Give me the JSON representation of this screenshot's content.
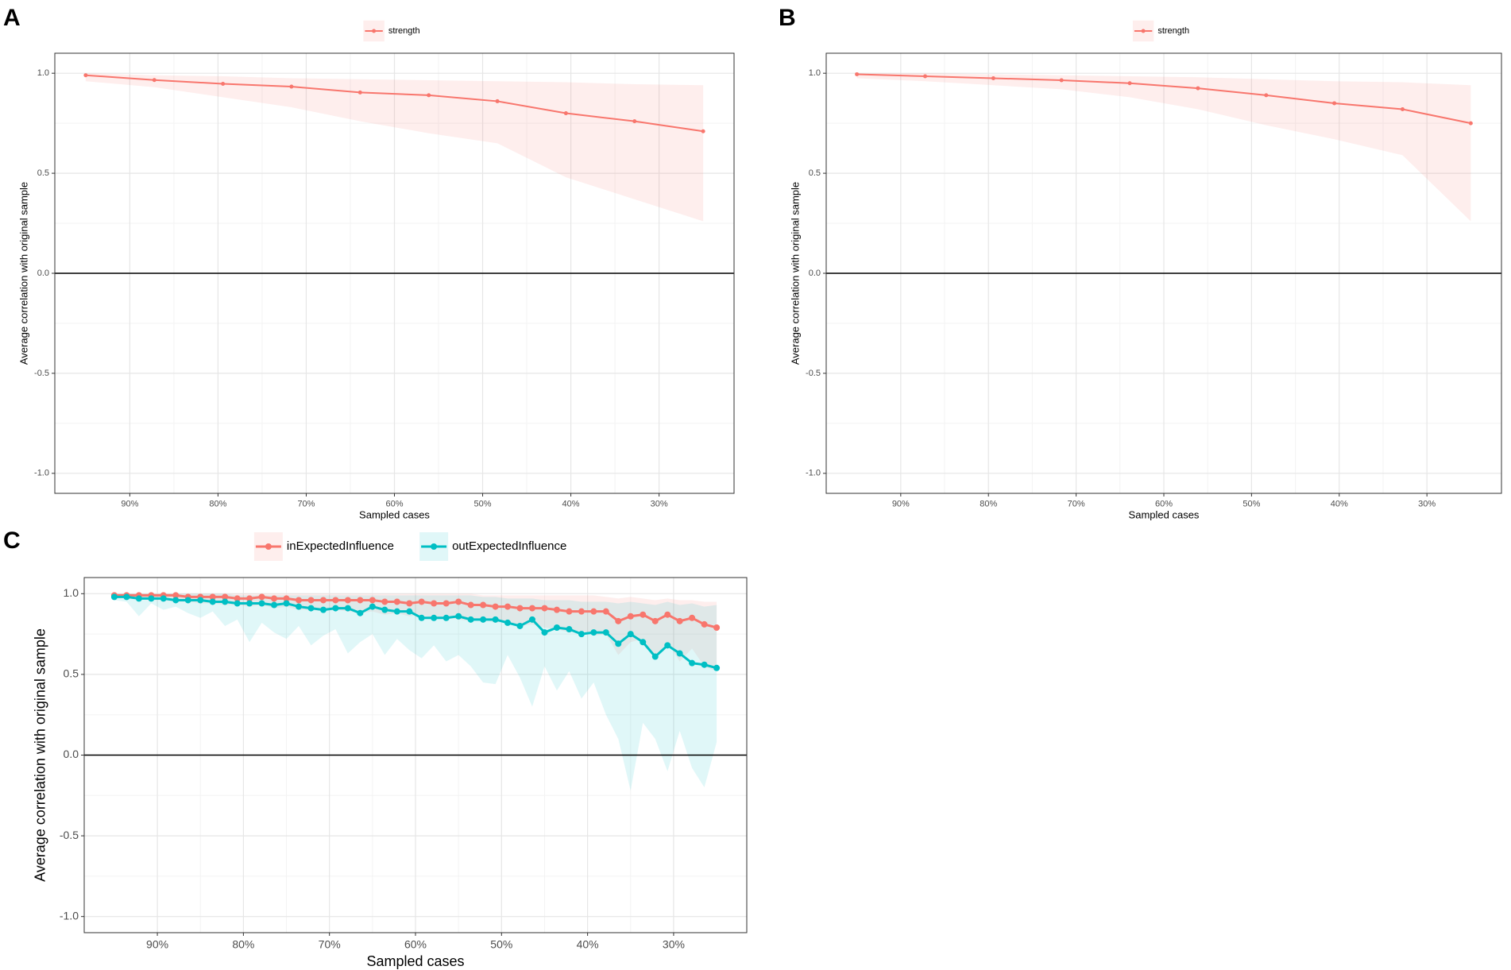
{
  "chart_data": [
    {
      "type": "line",
      "label": "A",
      "xlabel": "Sampled cases",
      "ylabel": "Average correlation with original sample",
      "x": [
        95,
        87.22,
        79.44,
        71.67,
        63.89,
        56.11,
        48.33,
        40.56,
        32.78,
        25
      ],
      "series": [
        {
          "name": "strength",
          "color": "#f8766d",
          "values": [
            0.99,
            0.966,
            0.947,
            0.933,
            0.904,
            0.89,
            0.86,
            0.8,
            0.76,
            0.71
          ],
          "lower": [
            0.96,
            0.93,
            0.88,
            0.83,
            0.76,
            0.7,
            0.65,
            0.48,
            0.37,
            0.26
          ],
          "upper": [
            1.0,
            0.99,
            0.985,
            0.975,
            0.97,
            0.965,
            0.96,
            0.955,
            0.945,
            0.94
          ]
        }
      ],
      "xlim": [
        98.5,
        21.5
      ],
      "xticks": [
        {
          "value": 90,
          "label": "90%"
        },
        {
          "value": 80,
          "label": "80%"
        },
        {
          "value": 70,
          "label": "70%"
        },
        {
          "value": 60,
          "label": "60%"
        },
        {
          "value": 50,
          "label": "50%"
        },
        {
          "value": 40,
          "label": "40%"
        },
        {
          "value": 30,
          "label": "30%"
        }
      ],
      "ylim": [
        -1.1,
        1.1
      ],
      "yticks": [
        {
          "value": -1,
          "label": "-1.0"
        },
        -0.5,
        {
          "value": 0,
          "label": "0.0"
        },
        0.5,
        {
          "value": 1,
          "label": "1.0"
        }
      ],
      "hline": 0,
      "grid": true,
      "legend": "top"
    },
    {
      "type": "line",
      "label": "B",
      "xlabel": "Sampled cases",
      "ylabel": "Average correlation with original sample",
      "x": [
        95,
        87.22,
        79.44,
        71.67,
        63.89,
        56.11,
        48.33,
        40.56,
        32.78,
        25
      ],
      "series": [
        {
          "name": "strength",
          "color": "#f8766d",
          "values": [
            0.995,
            0.985,
            0.975,
            0.965,
            0.95,
            0.925,
            0.89,
            0.85,
            0.82,
            0.75
          ],
          "lower": [
            0.975,
            0.96,
            0.94,
            0.92,
            0.88,
            0.82,
            0.74,
            0.67,
            0.59,
            0.26
          ],
          "upper": [
            1.0,
            1.0,
            0.995,
            0.99,
            0.985,
            0.98,
            0.97,
            0.96,
            0.955,
            0.94
          ]
        }
      ],
      "xlim": [
        98.5,
        21.5
      ],
      "xticks": [
        {
          "value": 90,
          "label": "90%"
        },
        {
          "value": 80,
          "label": "80%"
        },
        {
          "value": 70,
          "label": "70%"
        },
        {
          "value": 60,
          "label": "60%"
        },
        {
          "value": 50,
          "label": "50%"
        },
        {
          "value": 40,
          "label": "40%"
        },
        {
          "value": 30,
          "label": "30%"
        }
      ],
      "ylim": [
        -1.1,
        1.1
      ],
      "yticks": [
        {
          "value": -1,
          "label": "-1.0"
        },
        -0.5,
        {
          "value": 0,
          "label": "0.0"
        },
        0.5,
        {
          "value": 1,
          "label": "1.0"
        }
      ],
      "hline": 0,
      "grid": true,
      "legend": "top"
    },
    {
      "type": "line",
      "label": "C",
      "xlabel": "Sampled cases",
      "ylabel": "Average correlation with original sample",
      "x": [
        95,
        93.57,
        92.14,
        90.71,
        89.29,
        87.86,
        86.43,
        85,
        83.57,
        82.14,
        80.71,
        79.29,
        77.86,
        76.43,
        75,
        73.57,
        72.14,
        70.71,
        69.29,
        67.86,
        66.43,
        65,
        63.57,
        62.14,
        60.71,
        59.29,
        57.86,
        56.43,
        55,
        53.57,
        52.14,
        50.71,
        49.29,
        47.86,
        46.43,
        45,
        43.57,
        42.14,
        40.71,
        39.29,
        37.86,
        36.43,
        35,
        33.57,
        32.14,
        30.71,
        29.29,
        27.86,
        26.43,
        25
      ],
      "series": [
        {
          "name": "inExpectedInfluence",
          "color": "#f8766d",
          "values": [
            0.99,
            0.99,
            0.99,
            0.99,
            0.99,
            0.99,
            0.98,
            0.98,
            0.98,
            0.98,
            0.97,
            0.97,
            0.98,
            0.97,
            0.97,
            0.96,
            0.96,
            0.96,
            0.96,
            0.96,
            0.96,
            0.96,
            0.95,
            0.95,
            0.94,
            0.95,
            0.94,
            0.94,
            0.95,
            0.93,
            0.93,
            0.92,
            0.92,
            0.91,
            0.91,
            0.91,
            0.9,
            0.89,
            0.89,
            0.89,
            0.89,
            0.83,
            0.86,
            0.87,
            0.83,
            0.87,
            0.83,
            0.85,
            0.81,
            0.79
          ],
          "lower": [
            0.98,
            0.97,
            0.97,
            0.96,
            0.96,
            0.95,
            0.95,
            0.94,
            0.94,
            0.93,
            0.93,
            0.92,
            0.93,
            0.91,
            0.92,
            0.9,
            0.9,
            0.89,
            0.9,
            0.89,
            0.88,
            0.89,
            0.87,
            0.88,
            0.86,
            0.87,
            0.85,
            0.86,
            0.84,
            0.83,
            0.84,
            0.82,
            0.83,
            0.8,
            0.81,
            0.79,
            0.78,
            0.76,
            0.77,
            0.74,
            0.75,
            0.62,
            0.7,
            0.72,
            0.6,
            0.7,
            0.58,
            0.66,
            0.55,
            0.52
          ],
          "upper": [
            1.0,
            1.0,
            1.0,
            1.0,
            1.0,
            1.0,
            1.0,
            1.0,
            1.0,
            1.0,
            1.0,
            1.0,
            1.0,
            1.0,
            1.0,
            1.0,
            1.0,
            1.0,
            1.0,
            1.0,
            1.0,
            1.0,
            1.0,
            1.0,
            1.0,
            1.0,
            1.0,
            1.0,
            1.0,
            1.0,
            0.99,
            0.99,
            0.99,
            0.99,
            0.99,
            0.99,
            0.99,
            0.99,
            0.99,
            0.99,
            0.98,
            0.97,
            0.98,
            0.97,
            0.96,
            0.97,
            0.96,
            0.96,
            0.95,
            0.95
          ]
        },
        {
          "name": "outExpectedInfluence",
          "color": "#00bfc4",
          "values": [
            0.98,
            0.98,
            0.97,
            0.97,
            0.97,
            0.96,
            0.96,
            0.96,
            0.95,
            0.95,
            0.94,
            0.94,
            0.94,
            0.93,
            0.94,
            0.92,
            0.91,
            0.9,
            0.91,
            0.91,
            0.88,
            0.92,
            0.9,
            0.89,
            0.89,
            0.85,
            0.85,
            0.85,
            0.86,
            0.84,
            0.84,
            0.84,
            0.82,
            0.8,
            0.84,
            0.76,
            0.79,
            0.78,
            0.75,
            0.76,
            0.76,
            0.69,
            0.75,
            0.7,
            0.61,
            0.68,
            0.63,
            0.57,
            0.56,
            0.54
          ],
          "lower": [
            0.96,
            0.95,
            0.86,
            0.94,
            0.9,
            0.92,
            0.88,
            0.85,
            0.89,
            0.8,
            0.84,
            0.7,
            0.82,
            0.76,
            0.72,
            0.8,
            0.68,
            0.74,
            0.78,
            0.63,
            0.7,
            0.75,
            0.62,
            0.72,
            0.65,
            0.6,
            0.68,
            0.58,
            0.62,
            0.55,
            0.45,
            0.44,
            0.62,
            0.48,
            0.3,
            0.55,
            0.4,
            0.52,
            0.35,
            0.45,
            0.25,
            0.1,
            -0.22,
            0.2,
            0.1,
            -0.1,
            0.15,
            -0.08,
            -0.2,
            0.08
          ],
          "upper": [
            1.0,
            1.0,
            1.0,
            1.0,
            1.0,
            1.0,
            1.0,
            1.0,
            1.0,
            1.0,
            0.99,
            0.99,
            0.99,
            0.99,
            0.99,
            0.99,
            0.99,
            0.99,
            0.99,
            0.99,
            0.99,
            0.99,
            0.99,
            0.99,
            0.99,
            0.99,
            0.99,
            0.99,
            0.99,
            0.99,
            0.98,
            0.98,
            0.97,
            0.97,
            0.97,
            0.96,
            0.96,
            0.96,
            0.95,
            0.95,
            0.95,
            0.94,
            0.95,
            0.94,
            0.93,
            0.95,
            0.93,
            0.94,
            0.92,
            0.93
          ]
        }
      ],
      "xlim": [
        98.5,
        21.5
      ],
      "xticks": [
        {
          "value": 90,
          "label": "90%"
        },
        {
          "value": 80,
          "label": "80%"
        },
        {
          "value": 70,
          "label": "70%"
        },
        {
          "value": 60,
          "label": "60%"
        },
        {
          "value": 50,
          "label": "50%"
        },
        {
          "value": 40,
          "label": "40%"
        },
        {
          "value": 30,
          "label": "30%"
        }
      ],
      "ylim": [
        -1.1,
        1.1
      ],
      "yticks": [
        {
          "value": -1,
          "label": "-1.0"
        },
        -0.5,
        {
          "value": 0,
          "label": "0.0"
        },
        0.5,
        {
          "value": 1,
          "label": "1.0"
        }
      ],
      "hline": 0,
      "grid": true,
      "legend": "top"
    }
  ]
}
